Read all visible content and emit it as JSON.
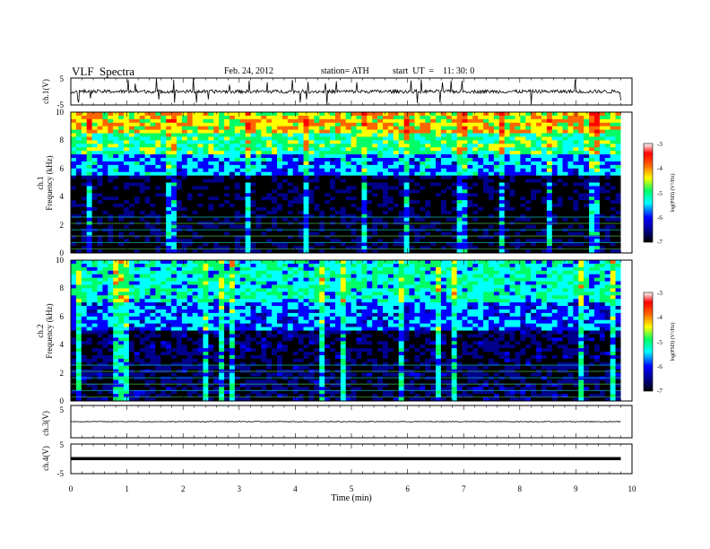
{
  "header": {
    "title": "VLF  Spectra",
    "date": "Feb. 24, 2012",
    "station": "station= ATH",
    "start": "start  UT  =    11: 30: 0"
  },
  "chart_data": [
    {
      "type": "line",
      "id": "ch1-waveform",
      "ylabel": "ch.1(V)",
      "yticks": [
        "5",
        "-5"
      ],
      "ylim": [
        -5,
        5
      ],
      "xlim": [
        0,
        10
      ],
      "data_xlim": [
        0,
        9.8
      ],
      "description_level": "noisy signal around 0 V with impulsive spikes reaching about ±5 V"
    },
    {
      "type": "heatmap",
      "id": "ch1-spectrogram",
      "ylabel_top": "ch.1",
      "ylabel": "Frequency  (kHz)",
      "yticks": [
        "0",
        "2",
        "4",
        "6",
        "8",
        "10"
      ],
      "ylim": [
        0,
        10
      ],
      "xlim": [
        0,
        10
      ],
      "data_xlim": [
        0,
        9.8
      ],
      "colorbar": {
        "label": "log(PSD) (V²/Hz)",
        "ticks": [
          "-3",
          "-4",
          "-5",
          "-6",
          "-7"
        ],
        "range": [
          -7,
          -3
        ]
      },
      "bands": [
        {
          "freq_khz": [
            0,
            5.5
          ],
          "log_psd": -6.7
        },
        {
          "freq_khz": [
            5.5,
            7
          ],
          "log_psd": -5.5
        },
        {
          "freq_khz": [
            7,
            8.5
          ],
          "log_psd": -4.9
        },
        {
          "freq_khz": [
            8.5,
            10
          ],
          "log_psd": -4.2
        }
      ]
    },
    {
      "type": "heatmap",
      "id": "ch2-spectrogram",
      "ylabel_top": "ch.2",
      "ylabel": "Frequency  (kHz)",
      "yticks": [
        "0",
        "2",
        "4",
        "6",
        "8",
        "10"
      ],
      "ylim": [
        0,
        10
      ],
      "xlim": [
        0,
        10
      ],
      "data_xlim": [
        0,
        9.8
      ],
      "colorbar": {
        "label": "log(PSD) (V²/Hz)",
        "ticks": [
          "-3",
          "-4",
          "-5",
          "-6",
          "-7"
        ],
        "range": [
          -7,
          -3
        ]
      },
      "bands": [
        {
          "freq_khz": [
            0,
            5
          ],
          "log_psd": -6.5
        },
        {
          "freq_khz": [
            5,
            7
          ],
          "log_psd": -5.6
        },
        {
          "freq_khz": [
            7,
            10
          ],
          "log_psd": -5.1
        }
      ]
    },
    {
      "type": "line",
      "id": "ch3-waveform",
      "ylabel": "ch.3(V)",
      "yticks": [
        "5"
      ],
      "ylim": [
        -5,
        5
      ],
      "xlim": [
        0,
        10
      ],
      "data_xlim": [
        0,
        9.8
      ],
      "description_level": "flat trace near 0 V"
    },
    {
      "type": "line",
      "id": "ch4-waveform",
      "ylabel": "ch.4(V)",
      "yticks": [
        "5",
        "-5"
      ],
      "ylim": [
        -5,
        5
      ],
      "xlim": [
        0,
        10
      ],
      "data_xlim": [
        0,
        9.8
      ],
      "description_level": "thick flat trace near 0 V"
    }
  ],
  "xaxis": {
    "label": "Time  (min)",
    "ticks": [
      "0",
      "1",
      "2",
      "3",
      "4",
      "5",
      "6",
      "7",
      "8",
      "9",
      "10"
    ]
  },
  "colors": {
    "colormap": [
      "#000000",
      "#00008b",
      "#0000ff",
      "#00ffff",
      "#00ff66",
      "#ffff00",
      "#ff6600",
      "#ff0000",
      "#ffffff"
    ]
  }
}
